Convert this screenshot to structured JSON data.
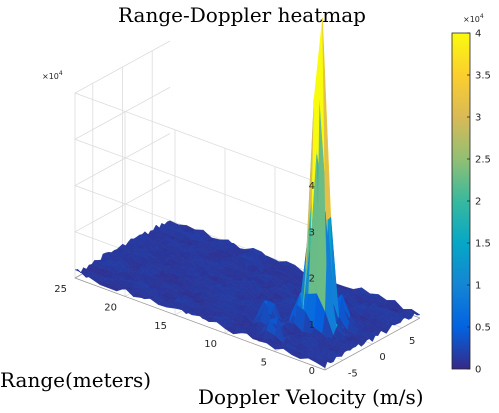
{
  "chart_data": {
    "type": "heatmap",
    "subtype": "3d-surface",
    "title": "Range-Doppler heatmap",
    "xlabel": "Doppler Velocity (m/s)",
    "ylabel": "Range(meters)",
    "zlabel": "",
    "x_ticks": [
      "-5",
      "0",
      "5"
    ],
    "y_ticks": [
      "5",
      "10",
      "15",
      "20",
      "25"
    ],
    "z_ticks": [
      "0",
      "1",
      "2",
      "3",
      "4"
    ],
    "z_exponent": "×10",
    "z_exponent_power": "4",
    "xlim": [
      -8,
      8
    ],
    "ylim": [
      0,
      25
    ],
    "zlim": [
      0,
      40000
    ],
    "colormap": "parula",
    "colorbar": {
      "ticks": [
        "0",
        "0.5",
        "1",
        "1.5",
        "2",
        "2.5",
        "3",
        "3.5",
        "4"
      ],
      "range": [
        0,
        40000
      ],
      "exponent": "×10",
      "exponent_power": "4"
    },
    "grid": true,
    "noise_floor": 1500,
    "peaks": [
      {
        "doppler": -1.5,
        "range": 4.2,
        "value": 39000
      },
      {
        "doppler": -1.2,
        "range": 4.8,
        "value": 33000
      },
      {
        "doppler": -1.8,
        "range": 4.0,
        "value": 30000
      },
      {
        "doppler": -0.8,
        "range": 5.5,
        "value": 15000
      },
      {
        "doppler": -2.5,
        "range": 5.5,
        "value": 8000
      },
      {
        "doppler": -4.0,
        "range": 8.0,
        "value": 6000
      },
      {
        "doppler": -6.0,
        "range": 6.0,
        "value": 5000
      },
      {
        "doppler": 0.5,
        "range": 3.5,
        "value": 7000
      }
    ]
  }
}
